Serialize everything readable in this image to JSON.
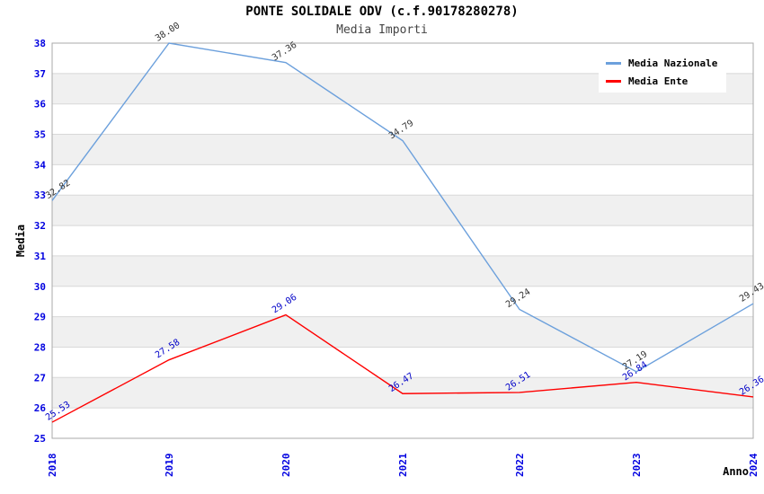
{
  "title": "PONTE SOLIDALE ODV (c.f.90178280278)",
  "subtitle": "Media Importi",
  "chart_data": {
    "type": "line",
    "x": [
      2018,
      2019,
      2020,
      2021,
      2022,
      2023,
      2024
    ],
    "xlabel": "Anno",
    "ylabel": "Media",
    "ylim": [
      25,
      38
    ],
    "y_tick_step": 1,
    "grid": true,
    "alternating_bands": true,
    "legend_position": "top-right",
    "series": [
      {
        "name": "Media Nazionale",
        "color": "#6CA0DC",
        "label_color": "#333333",
        "values": [
          32.82,
          38.0,
          37.36,
          34.79,
          29.24,
          27.19,
          29.43
        ]
      },
      {
        "name": "Media Ente",
        "color": "#FF0000",
        "label_color": "#0000C8",
        "values": [
          25.53,
          27.58,
          29.06,
          26.47,
          26.51,
          26.84,
          26.36
        ]
      }
    ]
  },
  "palette": {
    "axis_text": "#0000E0",
    "axis_title": "#000000",
    "band_fill": "#f0f0f0",
    "gridline": "#d8d8d8",
    "plot_border": "#aaaaaa",
    "background": "#ffffff"
  }
}
